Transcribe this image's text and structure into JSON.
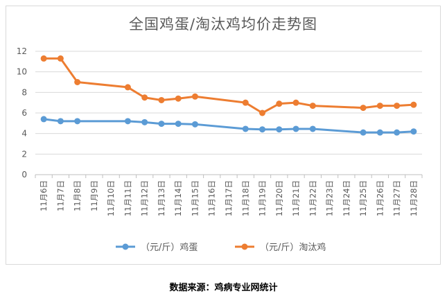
{
  "chart_data": {
    "type": "line",
    "title": "全国鸡蛋/淘汰鸡均价走势图",
    "categories": [
      "11月6日",
      "11月7日",
      "11月8日",
      "11月9日",
      "11月10日",
      "11月11日",
      "11月12日",
      "11月13日",
      "11月14日",
      "11月15日",
      "11月16日",
      "11月17日",
      "11月18日",
      "11月19日",
      "11月20日",
      "11月21日",
      "11月22日",
      "11月23日",
      "11月24日",
      "11月25日",
      "11月26日",
      "11月27日",
      "11月28日"
    ],
    "series": [
      {
        "name": "（元/斤）鸡蛋",
        "color": "#5b9bd5",
        "values": [
          5.4,
          5.2,
          5.2,
          null,
          null,
          5.2,
          5.1,
          4.95,
          4.95,
          4.9,
          null,
          null,
          4.45,
          4.4,
          4.4,
          4.45,
          4.45,
          null,
          null,
          4.1,
          4.1,
          4.1,
          4.2
        ]
      },
      {
        "name": "（元/斤）淘汰鸡",
        "color": "#ed7d31",
        "values": [
          11.3,
          11.3,
          9.0,
          null,
          null,
          8.5,
          7.5,
          7.25,
          7.4,
          7.6,
          null,
          null,
          7.0,
          6.0,
          6.9,
          7.0,
          6.7,
          null,
          null,
          6.5,
          6.7,
          6.7,
          6.8
        ]
      }
    ],
    "yticks": [
      0,
      2,
      4,
      6,
      8,
      10,
      12
    ],
    "ylim": [
      0,
      12
    ],
    "grid": true,
    "legend": "bottom"
  },
  "source_note": "数据来源：鸡病专业网统计"
}
